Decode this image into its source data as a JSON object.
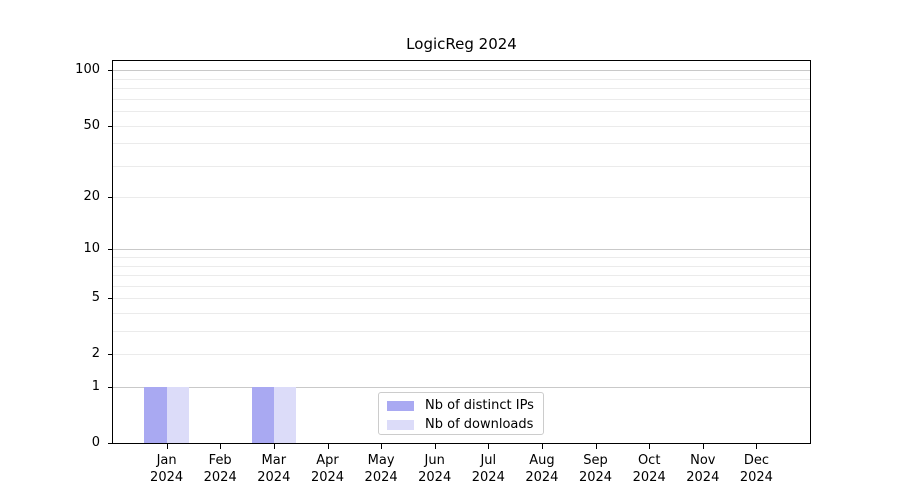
{
  "chart_data": {
    "type": "bar",
    "title": "LogicReg 2024",
    "categories": [
      "Jan",
      "Feb",
      "Mar",
      "Apr",
      "May",
      "Jun",
      "Jul",
      "Aug",
      "Sep",
      "Oct",
      "Nov",
      "Dec"
    ],
    "category_year": "2024",
    "series": [
      {
        "name": "Nb of distinct IPs",
        "key": "distinct-ips",
        "color": "#a9a9f2",
        "values": [
          1,
          0,
          1,
          0,
          0,
          0,
          0,
          0,
          0,
          0,
          0,
          0
        ]
      },
      {
        "name": "Nb of downloads",
        "key": "downloads",
        "color": "#dcdcf9",
        "values": [
          1,
          0,
          1,
          0,
          0,
          0,
          0,
          0,
          0,
          0,
          0,
          0
        ]
      }
    ],
    "xlabel": "",
    "ylabel": "",
    "y_ticks": [
      0,
      1,
      2,
      5,
      10,
      20,
      50,
      100
    ],
    "gridlines_major": [
      1,
      10,
      100
    ],
    "gridlines_minor": [
      2,
      3,
      4,
      5,
      6,
      7,
      8,
      9,
      20,
      30,
      40,
      50,
      60,
      70,
      80,
      90
    ],
    "y_scale": "log1p",
    "ylim": [
      0,
      112.3
    ],
    "grid": true,
    "legend_position": "lower center",
    "colors": {
      "grid_major": "#c9c9c9",
      "grid_minor": "#ebebeb",
      "axis": "#000000",
      "background": "#ffffff"
    }
  }
}
